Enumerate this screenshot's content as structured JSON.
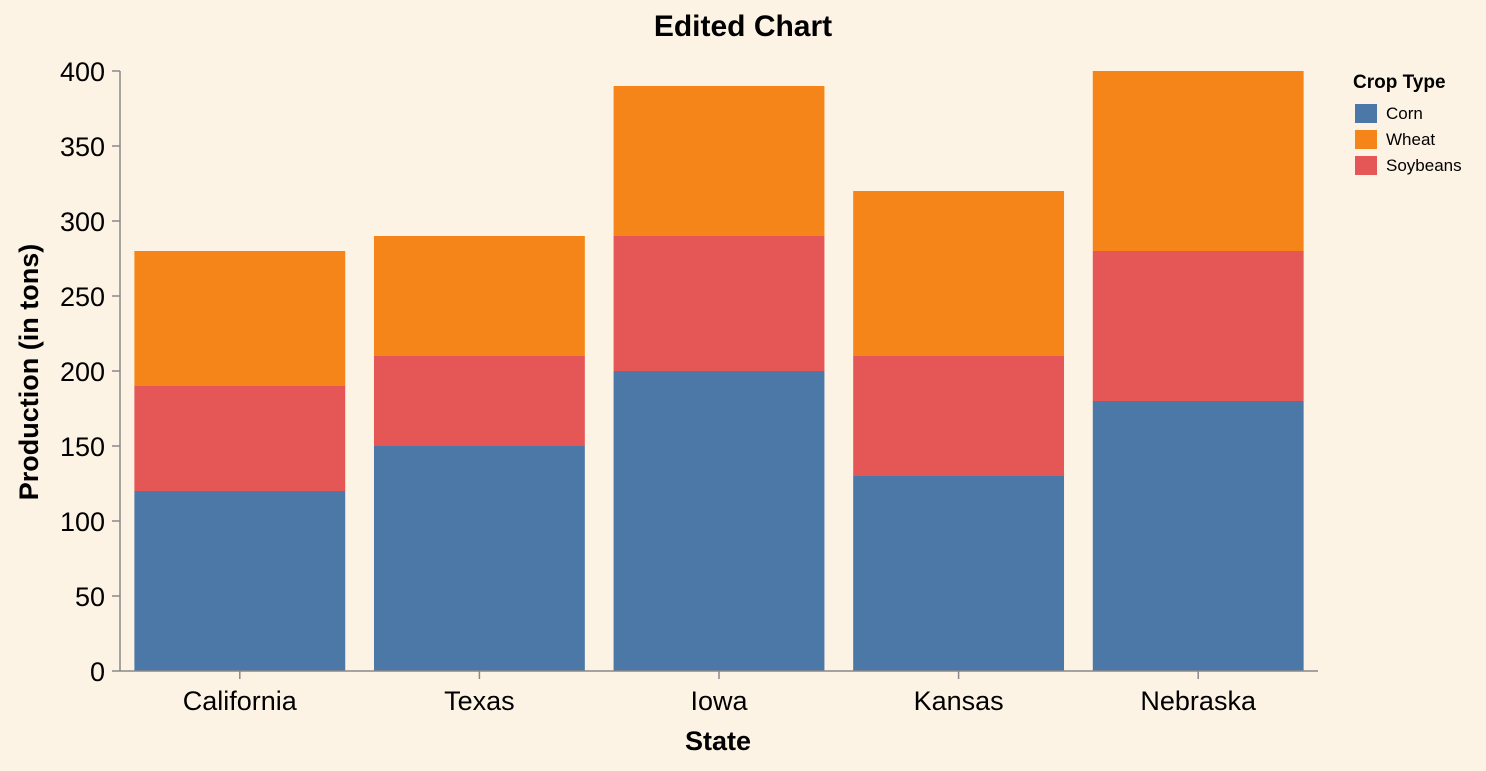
{
  "chart_data": {
    "type": "bar",
    "stacked": true,
    "title": "Edited Chart",
    "xlabel": "State",
    "ylabel": "Production (in tons)",
    "categories": [
      "California",
      "Texas",
      "Iowa",
      "Kansas",
      "Nebraska"
    ],
    "series": [
      {
        "name": "Corn",
        "color": "#4c78a8",
        "values": [
          120,
          150,
          200,
          130,
          180
        ]
      },
      {
        "name": "Soybeans",
        "color": "#e45756",
        "values": [
          70,
          60,
          90,
          80,
          100
        ]
      },
      {
        "name": "Wheat",
        "color": "#f58518",
        "values": [
          90,
          80,
          100,
          110,
          120
        ]
      }
    ],
    "ylim": [
      0,
      400
    ],
    "yticks": [
      0,
      50,
      100,
      150,
      200,
      250,
      300,
      350,
      400
    ],
    "grid": false,
    "legend": {
      "title": "Crop Type",
      "position": "top-right",
      "entries": [
        {
          "label": "Corn",
          "color": "#4c78a8"
        },
        {
          "label": "Wheat",
          "color": "#f58518"
        },
        {
          "label": "Soybeans",
          "color": "#e45756"
        }
      ]
    },
    "background": "#fdf3e5"
  }
}
